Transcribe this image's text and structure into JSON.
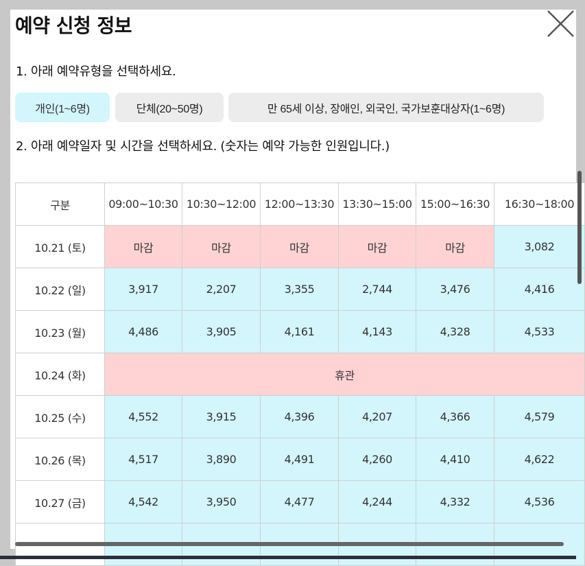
{
  "modal": {
    "title": "예약 신청 정보",
    "close_icon": "close-icon"
  },
  "step1": {
    "text": "1. 아래 예약유형을 선택하세요."
  },
  "types": [
    {
      "label": "개인(1~6명)",
      "selected": true
    },
    {
      "label": "단체(20~50명)",
      "selected": false
    },
    {
      "label": "만 65세 이상, 장애인, 외국인, 국가보훈대상자(1~6명)",
      "selected": false
    }
  ],
  "step2": {
    "text": "2. 아래 예약일자 및 시간을 선택하세요. (숫자는 예약 가능한 인원입니다.)"
  },
  "table": {
    "header": [
      "구분",
      "09:00~10:30",
      "10:30~12:00",
      "12:00~13:30",
      "13:30~15:00",
      "15:00~16:30",
      "16:30~18:00"
    ],
    "rows": [
      {
        "date": "10.21 (토)",
        "cells": [
          "마감",
          "마감",
          "마감",
          "마감",
          "마감",
          "3,082"
        ]
      },
      {
        "date": "10.22 (일)",
        "cells": [
          "3,917",
          "2,207",
          "3,355",
          "2,744",
          "3,476",
          "4,416"
        ]
      },
      {
        "date": "10.23 (월)",
        "cells": [
          "4,486",
          "3,905",
          "4,161",
          "4,143",
          "4,328",
          "4,533"
        ]
      },
      {
        "date": "10.24 (화)",
        "closed_all": "휴관"
      },
      {
        "date": "10.25 (수)",
        "cells": [
          "4,552",
          "3,915",
          "4,396",
          "4,207",
          "4,366",
          "4,579"
        ]
      },
      {
        "date": "10.26 (목)",
        "cells": [
          "4,517",
          "3,890",
          "4,491",
          "4,260",
          "4,410",
          "4,622"
        ]
      },
      {
        "date": "10.27 (금)",
        "cells": [
          "4,542",
          "3,950",
          "4,477",
          "4,244",
          "4,332",
          "4,536"
        ]
      },
      {
        "date": "",
        "cells": [
          "",
          "",
          "",
          "",
          "",
          ""
        ]
      }
    ]
  },
  "colors": {
    "closed": "#ffd3d3",
    "available": "#d3f5fc",
    "selected_type": "#d3f5fc",
    "unselected_type": "#ececec"
  }
}
